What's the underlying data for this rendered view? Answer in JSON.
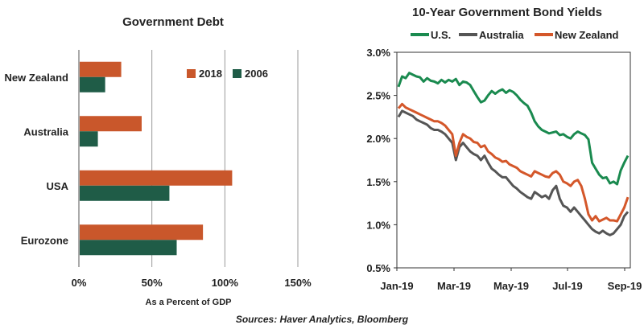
{
  "chart_data": [
    {
      "type": "bar",
      "title": "Government Debt",
      "xlabel": "As a Percent of GDP",
      "categories": [
        "New Zealand",
        "Australia",
        "USA",
        "Eurozone"
      ],
      "series": [
        {
          "name": "2018",
          "color": "#c9572b",
          "values": [
            29,
            43,
            105,
            85
          ]
        },
        {
          "name": "2006",
          "color": "#1f5c47",
          "values": [
            18,
            13,
            62,
            67
          ]
        }
      ],
      "xlim": [
        0,
        150
      ],
      "xticks": [
        "0%",
        "50%",
        "100%",
        "150%"
      ],
      "grid": "vertical",
      "orientation": "horizontal",
      "legend": "top-right"
    },
    {
      "type": "line",
      "title": "10-Year Government Bond Yields",
      "xticks": [
        "Jan-19",
        "Mar-19",
        "May-19",
        "Jul-19",
        "Sep-19"
      ],
      "yticks": [
        "0.5%",
        "1.0%",
        "1.5%",
        "2.0%",
        "2.5%",
        "3.0%"
      ],
      "ylim": [
        0.5,
        3.0
      ],
      "legend": "top",
      "series": [
        {
          "name": "U.S.",
          "color": "#1a8a4f",
          "values": [
            2.6,
            2.72,
            2.7,
            2.76,
            2.74,
            2.72,
            2.71,
            2.66,
            2.7,
            2.67,
            2.66,
            2.64,
            2.68,
            2.65,
            2.68,
            2.66,
            2.69,
            2.62,
            2.66,
            2.65,
            2.62,
            2.55,
            2.48,
            2.42,
            2.44,
            2.5,
            2.55,
            2.52,
            2.55,
            2.57,
            2.53,
            2.56,
            2.54,
            2.5,
            2.45,
            2.41,
            2.38,
            2.3,
            2.2,
            2.14,
            2.1,
            2.08,
            2.06,
            2.07,
            2.08,
            2.04,
            2.05,
            2.02,
            2.0,
            2.05,
            2.08,
            2.06,
            2.04,
            1.99,
            1.72,
            1.65,
            1.58,
            1.54,
            1.55,
            1.48,
            1.5,
            1.47,
            1.63,
            1.72,
            1.8
          ]
        },
        {
          "name": "Australia",
          "color": "#555555",
          "values": [
            2.25,
            2.32,
            2.3,
            2.28,
            2.26,
            2.22,
            2.2,
            2.18,
            2.16,
            2.12,
            2.1,
            2.1,
            2.08,
            2.05,
            2.0,
            1.95,
            1.75,
            1.9,
            1.95,
            1.9,
            1.85,
            1.82,
            1.8,
            1.75,
            1.8,
            1.72,
            1.65,
            1.62,
            1.58,
            1.55,
            1.55,
            1.5,
            1.45,
            1.42,
            1.38,
            1.35,
            1.32,
            1.3,
            1.38,
            1.35,
            1.32,
            1.34,
            1.3,
            1.4,
            1.45,
            1.3,
            1.22,
            1.2,
            1.15,
            1.2,
            1.15,
            1.1,
            1.05,
            1.0,
            0.95,
            0.92,
            0.9,
            0.93,
            0.9,
            0.88,
            0.9,
            0.95,
            1.0,
            1.1,
            1.15
          ]
        },
        {
          "name": "New Zealand",
          "color": "#d4572a",
          "values": [
            2.35,
            2.4,
            2.36,
            2.34,
            2.32,
            2.3,
            2.28,
            2.26,
            2.24,
            2.22,
            2.2,
            2.2,
            2.18,
            2.15,
            2.1,
            2.05,
            1.8,
            1.95,
            2.05,
            2.02,
            2.0,
            1.96,
            1.95,
            1.9,
            1.92,
            1.85,
            1.82,
            1.78,
            1.76,
            1.73,
            1.74,
            1.7,
            1.68,
            1.66,
            1.62,
            1.6,
            1.58,
            1.56,
            1.62,
            1.6,
            1.58,
            1.56,
            1.55,
            1.6,
            1.62,
            1.58,
            1.5,
            1.48,
            1.45,
            1.5,
            1.52,
            1.45,
            1.3,
            1.12,
            1.05,
            1.1,
            1.04,
            1.06,
            1.08,
            1.05,
            1.05,
            1.04,
            1.12,
            1.2,
            1.32
          ]
        }
      ]
    }
  ],
  "source": "Sources: Haver Analytics, Bloomberg"
}
